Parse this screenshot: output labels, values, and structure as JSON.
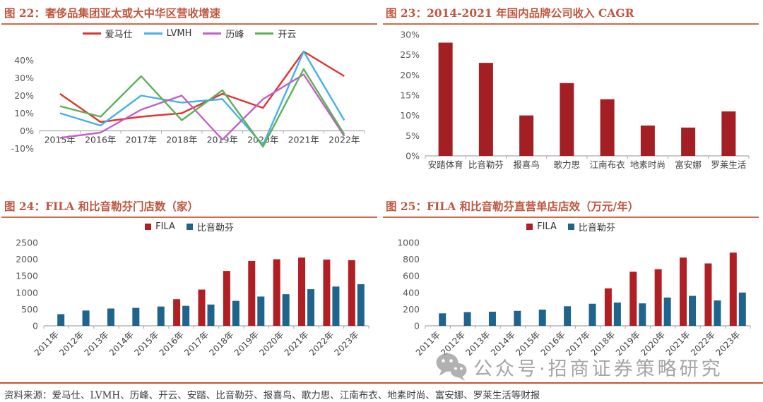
{
  "style": {
    "title_color": "#bf5740",
    "title_rule_color": "#cf6a4c",
    "footer_rule_color": "#cf5030",
    "axis_color": "#a8a8a8",
    "ytick_label_color": "#595959",
    "xtick_label_color": "#404040"
  },
  "watermark": {
    "icon": "wechat-icon",
    "text": "公众号·招商证券策略研究",
    "color": "#a5a5a5"
  },
  "footer": {
    "source": "资料来源：爱马仕、LVMH、历峰、开云、安踏、比音勒芬、报喜鸟、歌力思、江南布衣、地素时尚、富安娜、罗莱生活等财报"
  },
  "chart_data": [
    {
      "id": "fig22",
      "type": "line",
      "title": "图 22：奢侈品集团亚太或大中华区营收增速",
      "x": [
        "2015年",
        "2016年",
        "2017年",
        "2018年",
        "2019年",
        "2020年",
        "2021年",
        "2022年"
      ],
      "series": [
        {
          "name": "爱马仕",
          "color": "#e03333",
          "values": [
            21,
            5,
            8,
            10,
            21,
            13,
            45,
            31
          ]
        },
        {
          "name": "LVMH",
          "color": "#45b1e8",
          "values": [
            10,
            3,
            20,
            16,
            18,
            -8,
            45,
            6
          ]
        },
        {
          "name": "历峰",
          "color": "#c161c6",
          "values": [
            -4,
            -1,
            12,
            20,
            -5,
            18,
            32,
            -3
          ]
        },
        {
          "name": "开云",
          "color": "#5cb157",
          "values": [
            14,
            8,
            31,
            6,
            23,
            -9,
            35,
            -2
          ]
        }
      ],
      "ylim": [
        -13,
        47
      ],
      "yticks": [
        40,
        30,
        20,
        10,
        0,
        -10
      ],
      "ytick_suffix": "%",
      "legend_position": "top",
      "grid": false
    },
    {
      "id": "fig23",
      "type": "bar",
      "title": "图 23：2014-2021 年国内品牌公司收入 CAGR",
      "categories": [
        "安踏体育",
        "比音勒芬",
        "报喜鸟",
        "歌力思",
        "江南布衣",
        "地素时尚",
        "富安娜",
        "罗莱生活"
      ],
      "values": [
        28,
        23,
        10,
        18,
        14,
        7.5,
        7,
        11
      ],
      "bar_color": "#a41f23",
      "ylim": [
        0,
        30
      ],
      "yticks": [
        30,
        25,
        20,
        15,
        10,
        5,
        0
      ],
      "ytick_suffix": "%",
      "grid": false
    },
    {
      "id": "fig24",
      "type": "bar",
      "title": "图 24：FILA 和比音勒芬门店数（家）",
      "categories": [
        "2011年",
        "2012年",
        "2013年",
        "2014年",
        "2015年",
        "2016年",
        "2017年",
        "2018年",
        "2019年",
        "2020年",
        "2021年",
        "2022年",
        "2023年"
      ],
      "series": [
        {
          "name": "FILA",
          "color": "#b01f24",
          "values": [
            null,
            null,
            null,
            null,
            null,
            800,
            1090,
            1650,
            1950,
            2000,
            2050,
            1990,
            1970
          ]
        },
        {
          "name": "比音勒芬",
          "color": "#1e648c",
          "values": [
            350,
            460,
            520,
            540,
            580,
            600,
            640,
            750,
            880,
            950,
            1100,
            1180,
            1250
          ]
        }
      ],
      "ylim": [
        0,
        2500
      ],
      "yticks": [
        2500,
        2000,
        1500,
        1000,
        500,
        0
      ],
      "ytick_suffix": "",
      "xtick_rotation": 45,
      "legend_position": "top",
      "grid": false
    },
    {
      "id": "fig25",
      "type": "bar",
      "title": "图 25：FILA 和比音勒芬直营单店店效（万元/年）",
      "categories": [
        "2011年",
        "2012年",
        "2013年",
        "2014年",
        "2015年",
        "2016年",
        "2017年",
        "2018年",
        "2019年",
        "2020年",
        "2021年",
        "2022年",
        "2023年"
      ],
      "series": [
        {
          "name": "FILA",
          "color": "#b01f24",
          "values": [
            null,
            null,
            null,
            null,
            null,
            null,
            null,
            450,
            650,
            680,
            820,
            750,
            880
          ]
        },
        {
          "name": "比音勒芬",
          "color": "#1e648c",
          "values": [
            150,
            165,
            170,
            180,
            195,
            235,
            265,
            280,
            270,
            340,
            360,
            305,
            400
          ]
        }
      ],
      "ylim": [
        0,
        1000
      ],
      "yticks": [
        1000,
        800,
        600,
        400,
        200,
        0
      ],
      "ytick_suffix": "",
      "xtick_rotation": 45,
      "legend_position": "top",
      "grid": false
    }
  ]
}
